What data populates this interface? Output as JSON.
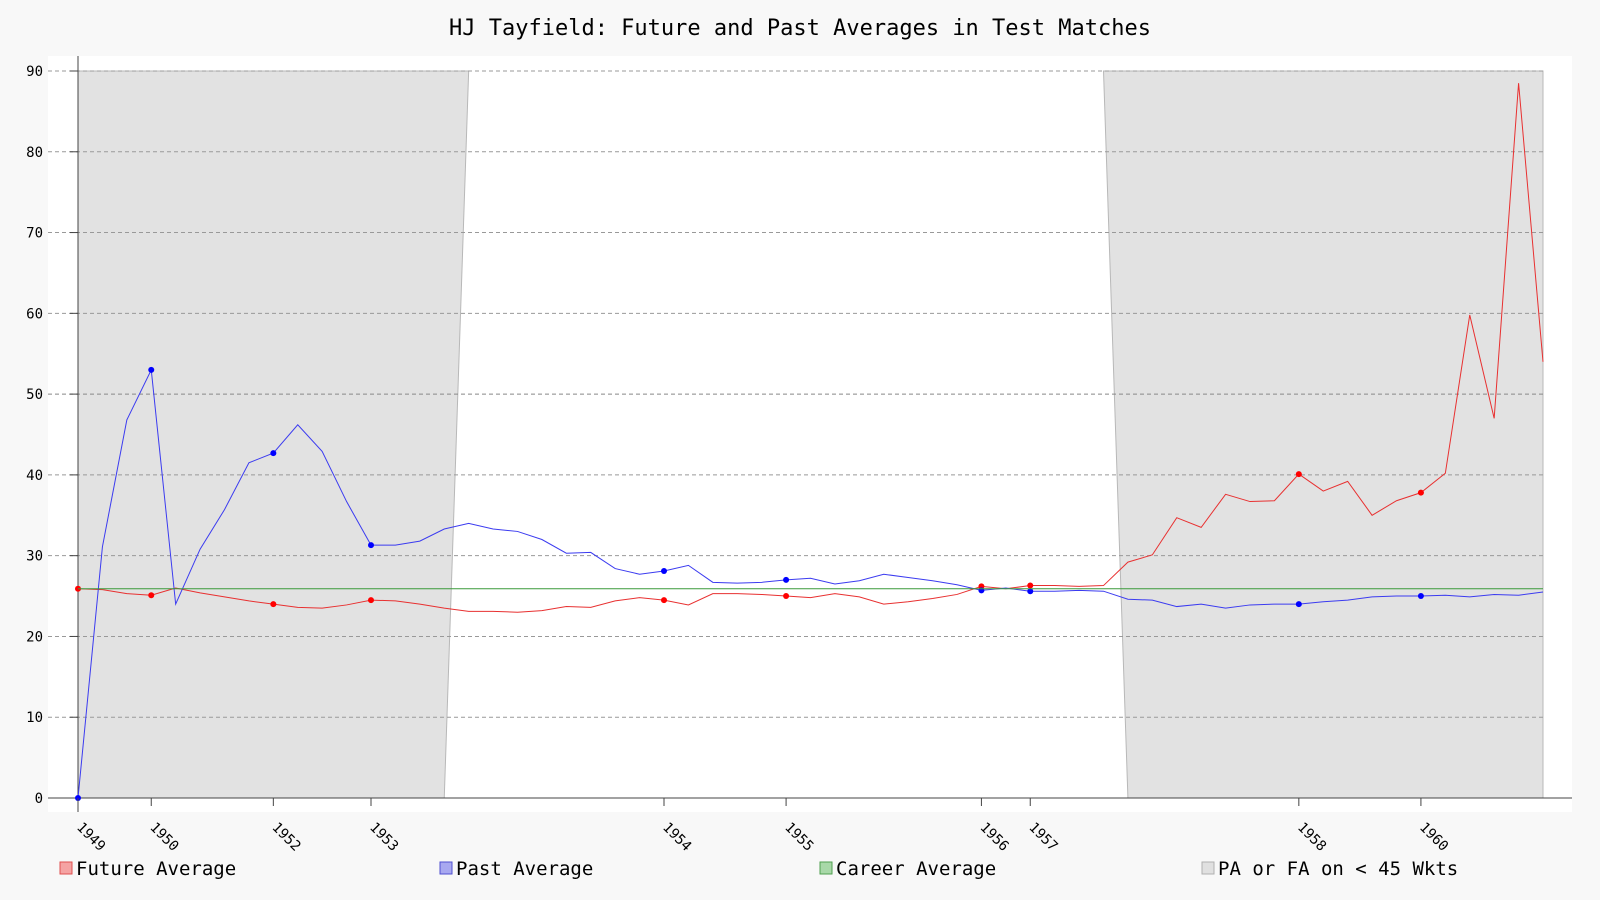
{
  "chart_data": {
    "type": "line",
    "title": "HJ Tayfield: Future and Past Averages in Test Matches",
    "ylim": [
      0,
      90
    ],
    "yticks": [
      0,
      10,
      20,
      30,
      40,
      50,
      60,
      70,
      80,
      90
    ],
    "xlim": [
      0,
      60
    ],
    "grid": "horizontal dashed",
    "x_tick_labels": [
      {
        "label": "1949",
        "x": 0
      },
      {
        "label": "1950",
        "x": 3
      },
      {
        "label": "1952",
        "x": 8
      },
      {
        "label": "1953",
        "x": 12
      },
      {
        "label": "1954",
        "x": 24
      },
      {
        "label": "1955",
        "x": 29
      },
      {
        "label": "1956",
        "x": 37
      },
      {
        "label": "1957",
        "x": 39
      },
      {
        "label": "1958",
        "x": 50
      },
      {
        "label": "1960",
        "x": 55
      }
    ],
    "shaded_regions": [
      {
        "name": "PA or FA on < 45 Wkts",
        "x_top": [
          0,
          16
        ],
        "x_bottom": [
          0,
          15
        ]
      },
      {
        "name": "PA or FA on < 45 Wkts",
        "x_top": [
          42,
          60
        ],
        "x_bottom": [
          43,
          60
        ]
      }
    ],
    "series": [
      {
        "name": "Future Average",
        "color": "#e83030",
        "values": [
          25.9,
          25.8,
          25.3,
          25.1,
          26.0,
          25.4,
          24.9,
          24.4,
          24.0,
          23.6,
          23.5,
          23.9,
          24.5,
          24.4,
          24.0,
          23.5,
          23.1,
          23.1,
          23.0,
          23.2,
          23.7,
          23.6,
          24.4,
          24.8,
          24.5,
          23.9,
          25.3,
          25.3,
          25.2,
          25.0,
          24.8,
          25.3,
          24.9,
          24.0,
          24.3,
          24.7,
          25.2,
          26.2,
          25.9,
          26.3,
          26.3,
          26.2,
          26.3,
          29.2,
          30.1,
          34.7,
          33.5,
          37.6,
          36.7,
          36.8,
          40.1,
          38.0,
          39.2,
          35.0,
          36.8,
          37.8,
          40.2,
          59.8,
          47.0,
          88.5,
          54.0
        ],
        "markers": [
          0,
          3,
          8,
          12,
          24,
          29,
          37,
          39,
          50,
          55
        ]
      },
      {
        "name": "Past Average",
        "color": "#3b3bf0",
        "values": [
          0.0,
          31.1,
          46.8,
          53.0,
          24.0,
          30.8,
          35.7,
          41.5,
          42.7,
          46.2,
          42.9,
          36.7,
          31.3,
          31.3,
          31.8,
          33.3,
          34.0,
          33.3,
          33.0,
          32.0,
          30.3,
          30.4,
          28.4,
          27.7,
          28.1,
          28.8,
          26.7,
          26.6,
          26.7,
          27.0,
          27.2,
          26.5,
          26.9,
          27.7,
          27.3,
          26.9,
          26.4,
          25.7,
          26.0,
          25.6,
          25.6,
          25.7,
          25.6,
          24.6,
          24.5,
          23.7,
          24.0,
          23.5,
          23.9,
          24.0,
          24.0,
          24.3,
          24.5,
          24.9,
          25.0,
          25.0,
          25.1,
          24.9,
          25.2,
          25.1,
          25.5
        ],
        "markers": [
          0,
          3,
          8,
          12,
          24,
          29,
          37,
          39,
          50,
          55
        ]
      },
      {
        "name": "Career Average",
        "color": "#3a9a3a",
        "value": 25.9
      }
    ],
    "legend": [
      {
        "label": "Future Average",
        "fill": "#f5a3a3",
        "stroke": "#e05050"
      },
      {
        "label": "Past Average",
        "fill": "#a8a8f0",
        "stroke": "#5050d0"
      },
      {
        "label": "Career Average",
        "fill": "#a8d8a8",
        "stroke": "#50a050"
      },
      {
        "label": "PA or FA on < 45 Wkts",
        "fill": "#e0e0e0",
        "stroke": "#b0b0b0"
      }
    ],
    "legend_position": "bottom"
  }
}
